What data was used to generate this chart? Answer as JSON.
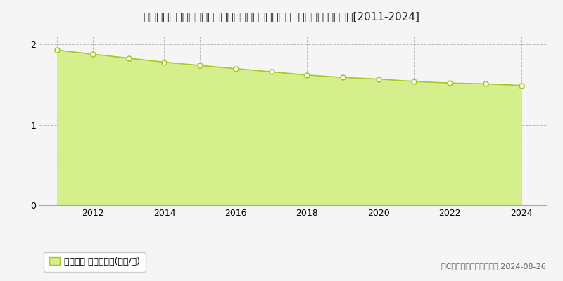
{
  "title": "新潟県上越市大潟区高橋新田字南舟入１６６番１外  地価公示 地価推移[2011-2024]",
  "years": [
    2011,
    2012,
    2013,
    2014,
    2015,
    2016,
    2017,
    2018,
    2019,
    2020,
    2021,
    2022,
    2023,
    2024
  ],
  "values": [
    1.93,
    1.88,
    1.83,
    1.78,
    1.74,
    1.7,
    1.66,
    1.62,
    1.59,
    1.57,
    1.54,
    1.52,
    1.51,
    1.49
  ],
  "ylim": [
    0,
    2.1
  ],
  "yticks": [
    0,
    1,
    2
  ],
  "xlim_min": 2010.5,
  "xlim_max": 2024.7,
  "fill_color": "#d4ef8b",
  "line_color": "#a8c820",
  "marker_facecolor": "#ffffff",
  "marker_edgecolor": "#a8c820",
  "grid_color": "#bbbbbb",
  "background_color": "#f5f5f5",
  "plot_bg_color": "#f5f5f5",
  "legend_label": "地価公示 平均坪単価(万円/坪)",
  "legend_marker_color": "#d4ef8b",
  "legend_marker_edge": "#a8c820",
  "copyright_text": "（C）土地価格ドットコム 2024-08-26",
  "title_fontsize": 11,
  "tick_fontsize": 9,
  "legend_fontsize": 9,
  "copyright_fontsize": 8,
  "xtick_labels": [
    2012,
    2014,
    2016,
    2018,
    2020,
    2022,
    2024
  ],
  "xgrid_years": [
    2011,
    2012,
    2013,
    2014,
    2015,
    2016,
    2017,
    2018,
    2019,
    2020,
    2021,
    2022,
    2023,
    2024
  ]
}
